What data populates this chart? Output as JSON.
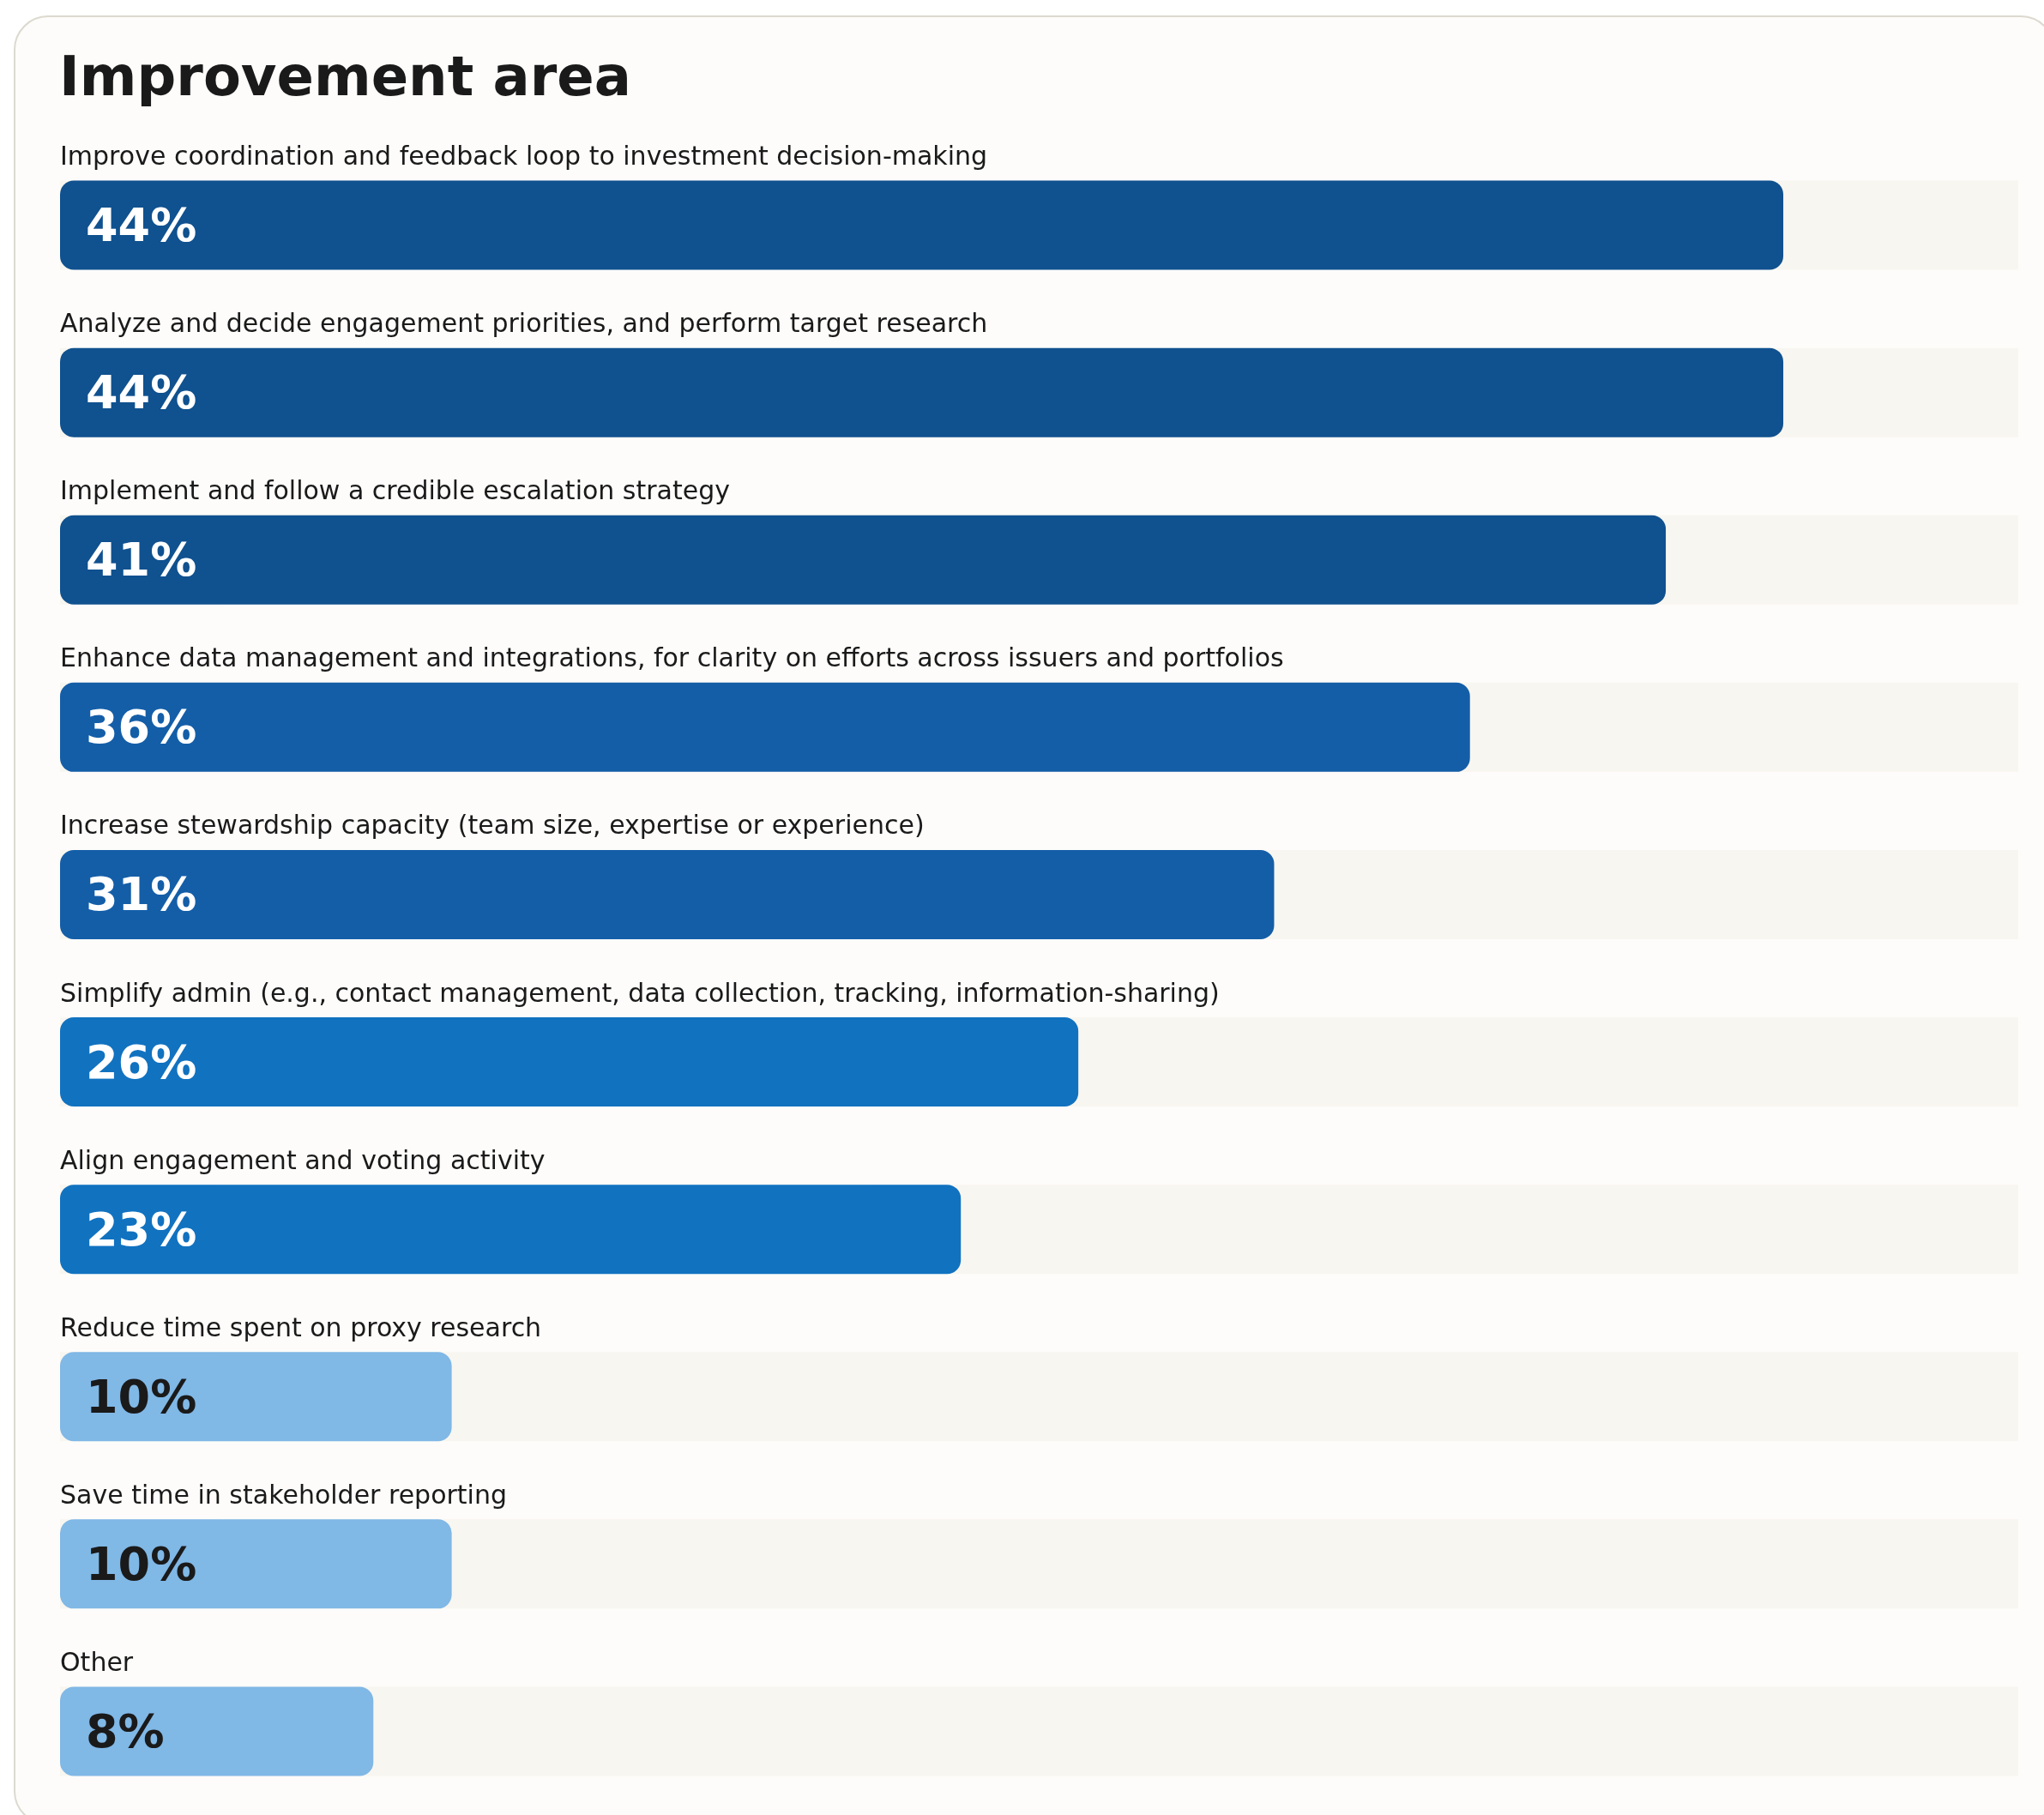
{
  "chart_data": {
    "type": "bar",
    "orientation": "horizontal",
    "title": "Improvement area",
    "categories": [
      "Improve coordination and feedback loop to investment decision-making",
      "Analyze and decide engagement priorities, and perform target research",
      "Implement and follow a credible escalation strategy",
      "Enhance data management and integrations, for clarity on efforts across issuers and portfolios",
      "Increase stewardship capacity (team size, expertise or experience)",
      "Simplify admin (e.g., contact management, data collection, tracking, information-sharing)",
      "Align engagement and voting activity",
      "Reduce time spent on proxy research",
      "Save time in stakeholder reporting",
      "Other"
    ],
    "values": [
      44,
      44,
      41,
      36,
      31,
      26,
      23,
      10,
      10,
      8
    ],
    "value_labels": [
      "44%",
      "44%",
      "41%",
      "36%",
      "31%",
      "26%",
      "23%",
      "10%",
      "10%",
      "8%"
    ],
    "colors": [
      "#10518f",
      "#10518f",
      "#10518f",
      "#145ea8",
      "#145ea8",
      "#1172c0",
      "#1172c0",
      "#80b8e6",
      "#80b8e6",
      "#80b8e6"
    ]
  }
}
